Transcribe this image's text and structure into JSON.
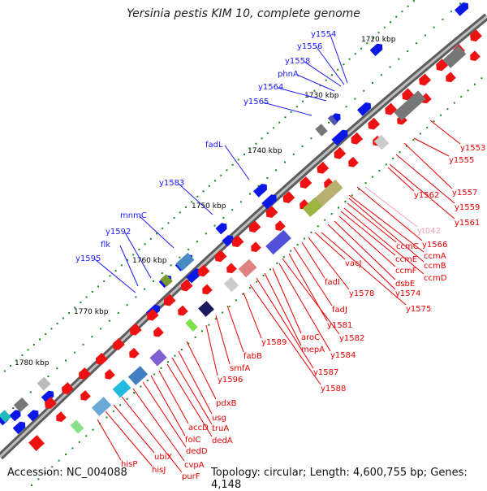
{
  "title": "Yersinia pestis KIM 10, complete genome",
  "footer": {
    "accession": "Accession: NC_004088",
    "topology": "Topology: circular; Length: 4,600,755 bp; Genes: 4,148"
  },
  "colors": {
    "forward_label": "#1a1aff",
    "reverse_label": "#e60000",
    "rna_label": "#f2a0c0",
    "backbone": "#8c8c8c",
    "tick": "#138a13"
  },
  "kbp_ticks": [
    "1720 kbp",
    "1730 kbp",
    "1740 kbp",
    "1750 kbp",
    "1760 kbp",
    "1770 kbp",
    "1780 kbp"
  ],
  "forward_genes": [
    "y1554",
    "y1556",
    "y1558",
    "phnA",
    "y1564",
    "y1565",
    "fadL",
    "y1583",
    "mnmC",
    "y1592",
    "flk",
    "y1595"
  ],
  "reverse_genes": [
    "y1553",
    "y1555",
    "y1557",
    "y1559",
    "y1561",
    "y1562",
    "yt042",
    "y1566",
    "ccmA",
    "ccmB",
    "ccmC",
    "ccmD",
    "ccmE",
    "ccmF",
    "dsbE",
    "y1574",
    "y1575",
    "vacJ",
    "y1578",
    "fadI",
    "fadJ",
    "y1581",
    "y1582",
    "y1584",
    "aroC",
    "mepA",
    "y1587",
    "y1588",
    "y1589",
    "fabB",
    "smfA",
    "y1596",
    "pdxB",
    "usg",
    "truA",
    "dedA",
    "accD",
    "folC",
    "dedD",
    "cvpA",
    "purF",
    "ubiX",
    "hisJ",
    "hisP"
  ]
}
